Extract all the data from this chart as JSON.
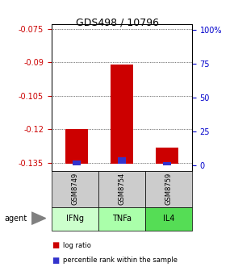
{
  "title": "GDS498 / 10796",
  "samples": [
    "GSM8749",
    "GSM8754",
    "GSM8759"
  ],
  "agents": [
    "IFNg",
    "TNFa",
    "IL4"
  ],
  "log_ratio": [
    -0.12,
    -0.091,
    -0.128
  ],
  "baseline": -0.1355,
  "percentile": [
    3.5,
    6.0,
    2.5
  ],
  "ylim_left": [
    -0.1385,
    -0.073
  ],
  "ylim_right": [
    -3.8,
    103.8
  ],
  "yticks_left": [
    -0.075,
    -0.09,
    -0.105,
    -0.12,
    -0.135
  ],
  "yticks_right": [
    0,
    25,
    50,
    75,
    100
  ],
  "bar_color_red": "#cc0000",
  "bar_color_blue": "#3333cc",
  "sample_box_color": "#cccccc",
  "agent_box_colors": [
    "#ccffcc",
    "#aaffaa",
    "#55dd55"
  ],
  "legend_red": "log ratio",
  "legend_blue": "percentile rank within the sample",
  "bar_width": 0.5,
  "blue_bar_width": 0.18,
  "background_color": "#ffffff"
}
